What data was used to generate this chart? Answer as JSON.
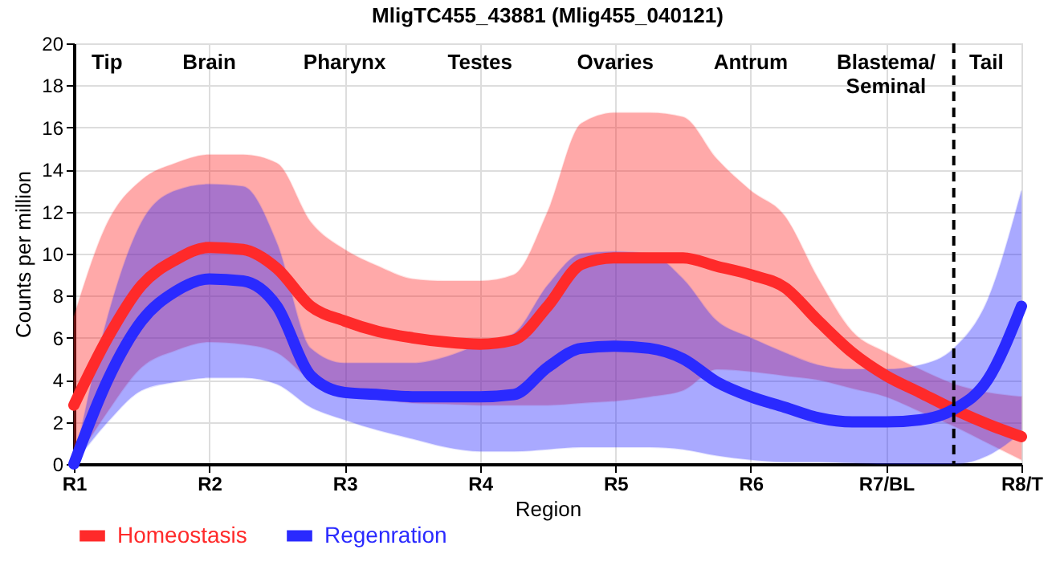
{
  "chart_data": {
    "type": "line",
    "title": "MligTC455_43881 (Mlig455_040121)",
    "xlabel": "Region",
    "ylabel": "Counts per million",
    "categories": [
      "R1",
      null,
      null,
      null,
      "R2",
      null,
      null,
      null,
      "R3",
      null,
      null,
      null,
      "R4",
      null,
      null,
      null,
      "R5",
      null,
      null,
      null,
      "R6",
      null,
      null,
      null,
      "R7/BL",
      null,
      null,
      null,
      "R8/T"
    ],
    "ylim": [
      0,
      20
    ],
    "yticks": [
      0,
      2,
      4,
      6,
      8,
      10,
      12,
      14,
      16,
      18,
      20
    ],
    "grid": true,
    "legend": "bottom left",
    "line_style": "solid",
    "series": [
      {
        "name": "Homeostasis",
        "color": "#ff2a2a",
        "values": [
          2.8,
          6,
          8.5,
          9.7,
          10.3,
          10.2,
          9.3,
          7.5,
          6.8,
          6.3,
          6.0,
          5.8,
          5.7,
          5.9,
          7.5,
          9.5,
          9.8,
          9.8,
          9.8,
          9.4,
          9.0,
          8.4,
          6.8,
          5.3,
          4.2,
          3.4,
          2.6,
          1.9,
          1.3
        ],
        "upper": [
          7,
          11.5,
          13.5,
          14.3,
          14.7,
          14.7,
          14.3,
          11.5,
          10.2,
          9.4,
          8.8,
          8.7,
          8.7,
          9.0,
          12.0,
          16.2,
          16.7,
          16.7,
          16.5,
          14.5,
          13.0,
          11.8,
          8.8,
          6.3,
          5.3,
          4.5,
          3.8,
          3.4,
          3.2
        ],
        "lower": [
          0,
          2.5,
          4.6,
          5.4,
          5.8,
          5.7,
          5.3,
          4.0,
          3.3,
          3.1,
          2.9,
          2.85,
          2.8,
          2.8,
          2.8,
          2.9,
          3.0,
          3.2,
          3.5,
          4.5,
          4.4,
          4.2,
          4.0,
          3.6,
          3.2,
          2.5,
          1.8,
          1.0,
          0.2
        ]
      },
      {
        "name": "Regenration",
        "color": "#2a2aff",
        "values": [
          0,
          4,
          6.8,
          8.2,
          8.8,
          8.7,
          7.5,
          4.2,
          3.4,
          3.3,
          3.2,
          3.2,
          3.2,
          3.3,
          4.6,
          5.5,
          5.6,
          5.5,
          5.0,
          3.9,
          3.2,
          2.7,
          2.2,
          2.0,
          2.0,
          2.1,
          2.6,
          4.0,
          7.5
        ],
        "upper": [
          0,
          7,
          11.5,
          13,
          13.3,
          13.2,
          10.5,
          5.5,
          4.8,
          4.8,
          4.8,
          5.1,
          5.7,
          6.2,
          8.5,
          10.0,
          10.1,
          10.0,
          8.8,
          6.8,
          6.0,
          5.3,
          4.7,
          4.5,
          4.5,
          4.7,
          5.5,
          7.8,
          13.0
        ],
        "lower": [
          0,
          2,
          3.5,
          3.9,
          4.1,
          4.1,
          3.8,
          2.7,
          2.1,
          1.6,
          1.2,
          0.8,
          0.6,
          0.6,
          0.7,
          0.8,
          0.8,
          0.8,
          0.7,
          0.4,
          0.2,
          0.1,
          0.1,
          0.05,
          0,
          0,
          0,
          0.4,
          1.5
        ]
      }
    ],
    "annotations": [
      "Tip",
      "Brain",
      "Pharynx",
      "Testes",
      "Ovaries",
      "Antrum",
      "Blastema/\nSeminal",
      "Tail"
    ]
  }
}
